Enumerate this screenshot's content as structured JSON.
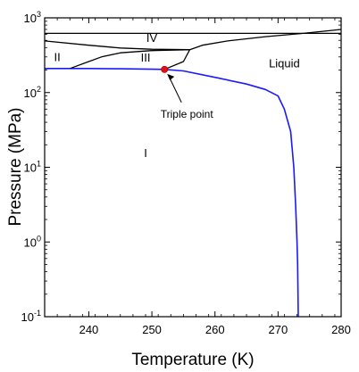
{
  "chart_data": {
    "type": "line",
    "xlabel": "Temperature (K)",
    "ylabel": "Pressure (MPa)",
    "xlim": [
      233,
      280
    ],
    "ylim": [
      0.1,
      1000
    ],
    "yscale": "log",
    "grid": false,
    "x_ticks": [
      {
        "value": 240,
        "label": "240"
      },
      {
        "value": 250,
        "label": "250"
      },
      {
        "value": 260,
        "label": "260"
      },
      {
        "value": 270,
        "label": "270"
      },
      {
        "value": 280,
        "label": "280"
      }
    ],
    "y_ticks": [
      {
        "value": 0.1,
        "base": "10",
        "exp": "-1"
      },
      {
        "value": 1,
        "base": "10",
        "exp": "0"
      },
      {
        "value": 10,
        "base": "10",
        "exp": "1"
      },
      {
        "value": 100,
        "base": "10",
        "exp": "2"
      },
      {
        "value": 1000,
        "base": "10",
        "exp": "3"
      }
    ],
    "series": [
      {
        "color": "#1a1aff",
        "points": [
          [
            233,
            210
          ],
          [
            240,
            210
          ],
          [
            245,
            208
          ],
          [
            250,
            205
          ],
          [
            252,
            204
          ],
          [
            255,
            195
          ],
          [
            260,
            160
          ],
          [
            265,
            130
          ],
          [
            268,
            110
          ],
          [
            270,
            90
          ],
          [
            271,
            60
          ],
          [
            272,
            30
          ],
          [
            272.5,
            10
          ],
          [
            272.8,
            3
          ],
          [
            273.0,
            1.0
          ],
          [
            273.1,
            0.5
          ],
          [
            273.2,
            0.1
          ]
        ]
      },
      {
        "color": "#000000",
        "points": [
          [
            233,
            620
          ],
          [
            280,
            620
          ]
        ]
      },
      {
        "color": "#000000",
        "points": [
          [
            233,
            490
          ],
          [
            240,
            430
          ],
          [
            245,
            395
          ],
          [
            250,
            380
          ],
          [
            256,
            375
          ]
        ]
      },
      {
        "color": "#000000",
        "points": [
          [
            237,
            210
          ],
          [
            240,
            260
          ],
          [
            242,
            300
          ],
          [
            245,
            340
          ],
          [
            250,
            365
          ],
          [
            256,
            375
          ]
        ]
      },
      {
        "color": "#000000",
        "points": [
          [
            252,
            204
          ],
          [
            255,
            260
          ],
          [
            256,
            375
          ],
          [
            258,
            430
          ],
          [
            262,
            490
          ],
          [
            268,
            560
          ],
          [
            274,
            620
          ],
          [
            280,
            700
          ]
        ]
      }
    ],
    "regions": [
      {
        "label": "I",
        "x": 249,
        "y": 15
      },
      {
        "label": "II",
        "x": 235,
        "y": 290
      },
      {
        "label": "III",
        "x": 249,
        "y": 285
      },
      {
        "label": "IV",
        "x": 250,
        "y": 520
      },
      {
        "label": "Liquid",
        "x": 271,
        "y": 240
      }
    ],
    "triple_point": {
      "x": 252,
      "y": 204,
      "label": "Triple point",
      "color": "#dd1111"
    }
  }
}
